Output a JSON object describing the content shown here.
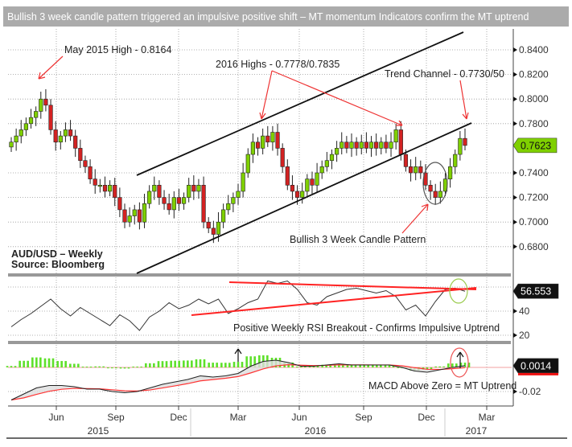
{
  "title": "Bullish 3 week candle pattern triggered an impulsive positive shift – MT momentum Indicators confirm the MT uptrend",
  "colors": {
    "up": "#7fd000",
    "down": "#d32222",
    "annotation": "#ee2222",
    "rsi_circle": "#9ccc50",
    "title_bg": "#ababab"
  },
  "chart_data": [
    {
      "type": "candlestick",
      "panel": "price",
      "legend": [
        "AUD/USD – Weekly",
        "Source: Bloomberg"
      ],
      "ylim": [
        0.66,
        0.855
      ],
      "yticks": [
        "0.8400",
        "0.8200",
        "0.8000",
        "0.7800",
        "0.7400",
        "0.7200",
        "0.7000",
        "0.6800"
      ],
      "ytick_values": [
        0.84,
        0.82,
        0.8,
        0.78,
        0.74,
        0.72,
        0.7,
        0.68
      ],
      "last_value": 0.7623,
      "last_label": "0.7623",
      "weekly_close": [
        0.765,
        0.77,
        0.775,
        0.78,
        0.785,
        0.79,
        0.8,
        0.795,
        0.775,
        0.765,
        0.77,
        0.775,
        0.77,
        0.76,
        0.75,
        0.745,
        0.735,
        0.73,
        0.73,
        0.725,
        0.73,
        0.72,
        0.71,
        0.7,
        0.705,
        0.71,
        0.7,
        0.715,
        0.725,
        0.73,
        0.72,
        0.715,
        0.71,
        0.72,
        0.715,
        0.72,
        0.73,
        0.725,
        0.73,
        0.7,
        0.695,
        0.69,
        0.7,
        0.71,
        0.715,
        0.72,
        0.725,
        0.74,
        0.755,
        0.765,
        0.76,
        0.77,
        0.765,
        0.773,
        0.76,
        0.745,
        0.73,
        0.725,
        0.72,
        0.725,
        0.735,
        0.73,
        0.74,
        0.745,
        0.75,
        0.755,
        0.76,
        0.765,
        0.76,
        0.765,
        0.76,
        0.765,
        0.76,
        0.765,
        0.76,
        0.765,
        0.76,
        0.765,
        0.775,
        0.755,
        0.745,
        0.74,
        0.745,
        0.74,
        0.73,
        0.725,
        0.72,
        0.725,
        0.735,
        0.745,
        0.755,
        0.768,
        0.7623
      ],
      "annotations": [
        {
          "text": "May 2015 High - 0.8164"
        },
        {
          "text": "2016 Highs - 0.7778/0.7835"
        },
        {
          "text": "Trend Channel - 0.7730/50"
        },
        {
          "text": "Bullish 3 Week Candle Pattern"
        }
      ]
    },
    {
      "type": "line",
      "panel": "RSI",
      "ylim": [
        13,
        68
      ],
      "yticks": [
        "40",
        "20"
      ],
      "ytick_values": [
        40,
        20
      ],
      "last_value": 56.553,
      "last_label": "56.553",
      "values": [
        27,
        33,
        38,
        44,
        50,
        42,
        36,
        43,
        38,
        33,
        28,
        37,
        32,
        24,
        35,
        40,
        47,
        42,
        45,
        50,
        46,
        50,
        38,
        42,
        47,
        50,
        65,
        63,
        65,
        58,
        47,
        45,
        52,
        55,
        58,
        59,
        57,
        55,
        57,
        52,
        41,
        45,
        36,
        48,
        58,
        59,
        56.5
      ],
      "annotation": "Positive Weekly RSI Breakout - Confirms Impulsive Uptrend"
    },
    {
      "type": "line",
      "panel": "MACD",
      "ylim": [
        -0.032,
        0.012
      ],
      "yticks": [
        "-0.02"
      ],
      "ytick_values": [
        -0.02
      ],
      "last_value": 0.0014,
      "last_label": "0.0014",
      "macd": [
        -0.027,
        -0.022,
        -0.017,
        -0.015,
        -0.015,
        -0.016,
        -0.018,
        -0.018,
        -0.02,
        -0.021,
        -0.02,
        -0.017,
        -0.014,
        -0.012,
        -0.01,
        -0.007,
        -0.008,
        -0.007,
        -0.005,
        0.001,
        0.005,
        0.006,
        0.004,
        0.001,
        0.001,
        0.002,
        0.003,
        0.002,
        0.002,
        0.002,
        0.002,
        0.0,
        -0.003,
        -0.004,
        -0.002,
        0.0,
        0.0014
      ],
      "annotation": "MACD Above Zero = MT Uptrend"
    }
  ],
  "x_axis": {
    "months": [
      "Jun",
      "Sep",
      "Dec",
      "Mar",
      "Jun",
      "Sep",
      "Dec",
      "Mar"
    ],
    "years": [
      "2015",
      "2016",
      "2017"
    ]
  }
}
